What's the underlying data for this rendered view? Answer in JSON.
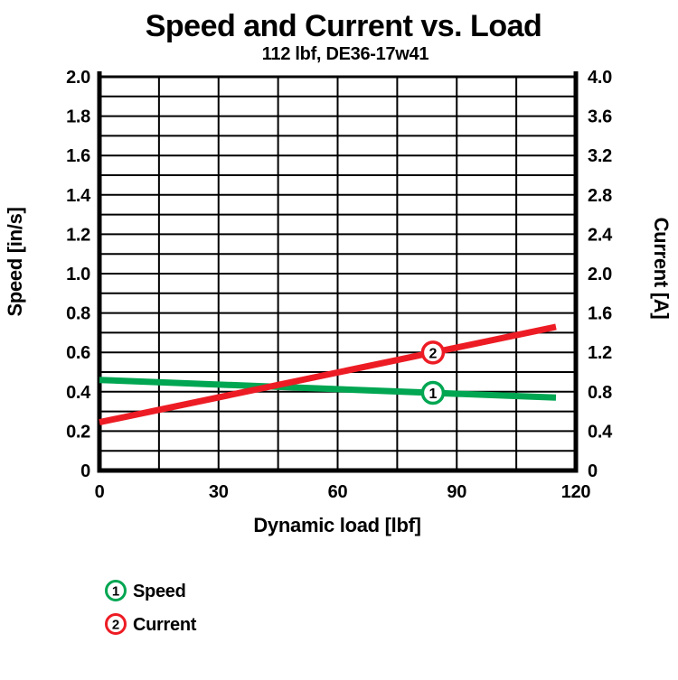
{
  "chart_data": {
    "type": "line",
    "title": "Speed and Current vs. Load",
    "subtitle": "112 lbf, DE36-17w41",
    "xlabel": "Dynamic load [lbf]",
    "ylabel_left": "Speed [in/s]",
    "ylabel_right": "Current [A]",
    "xlim": [
      0,
      120
    ],
    "x_tick_values": [
      0,
      30,
      60,
      90,
      120
    ],
    "x_tick_labels": [
      "0",
      "30",
      "60",
      "90",
      "120"
    ],
    "x_grid_step": 15,
    "ylim_left": [
      0,
      2.0
    ],
    "y_left_tick_values": [
      2.0,
      1.8,
      1.6,
      1.4,
      1.2,
      1.0,
      0.8,
      0.6,
      0.4,
      0.2,
      0
    ],
    "y_left_tick_labels": [
      "2.0",
      "1.8",
      "1.6",
      "1.4",
      "1.2",
      "1.0",
      "0.8",
      "0.6",
      "0.4",
      "0.2",
      "0"
    ],
    "y_left_grid_step": 0.1,
    "ylim_right": [
      0,
      4.0
    ],
    "y_right_tick_values": [
      4.0,
      3.6,
      3.2,
      2.8,
      2.4,
      2.0,
      1.6,
      1.2,
      0.8,
      0.4,
      0
    ],
    "y_right_tick_labels": [
      "4.0",
      "3.6",
      "3.2",
      "2.8",
      "2.4",
      "2.0",
      "1.6",
      "1.2",
      "0.8",
      "0.4",
      "0"
    ],
    "grid": true,
    "legend_position": "bottom-left",
    "series": [
      {
        "id": "1",
        "name": "Speed",
        "axis": "left",
        "color": "#00A651",
        "points": [
          [
            0,
            0.46
          ],
          [
            115,
            0.37
          ]
        ],
        "marker_load": 84
      },
      {
        "id": "2",
        "name": "Current",
        "axis": "right",
        "color": "#ED1C24",
        "points": [
          [
            0,
            0.49
          ],
          [
            115,
            1.46
          ]
        ],
        "marker_load": 84
      }
    ],
    "legend": [
      {
        "id": "1",
        "label": "Speed",
        "color": "#00A651"
      },
      {
        "id": "2",
        "label": "Current",
        "color": "#ED1C24"
      }
    ],
    "colors": {
      "axis": "#000000",
      "grid": "#000000",
      "background": "#FFFFFF",
      "speed": "#00A651",
      "current": "#ED1C24"
    }
  }
}
